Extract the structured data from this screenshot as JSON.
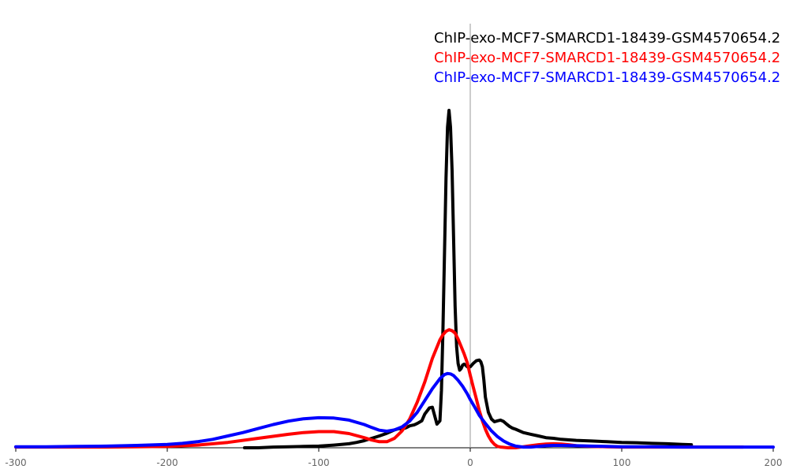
{
  "chart_data": {
    "type": "line",
    "title": "",
    "xlabel": "",
    "ylabel": "",
    "xlim": [
      -300,
      200
    ],
    "ylim": [
      0,
      1
    ],
    "x_ticks": [
      "-300",
      "-200",
      "-100",
      "0",
      "100",
      "200"
    ],
    "y_ticks_shown": false,
    "grid": false,
    "legend_placement": "top-right",
    "series": [
      {
        "name": "ChIP-exo-MCF7-SMARCD1-18439-GSM4570654.2",
        "color": "#000000",
        "x": [
          -149,
          -140,
          -130,
          -120,
          -110,
          -100,
          -90,
          -80,
          -75,
          -70,
          -65,
          -60,
          -55,
          -50,
          -47,
          -45,
          -42,
          -40,
          -37,
          -35,
          -32,
          -30,
          -27,
          -25,
          -22,
          -20,
          -19,
          -18,
          -17,
          -16,
          -15,
          -14,
          -13,
          -12,
          -11,
          -10,
          -9,
          -8,
          -7,
          -6,
          -5,
          -4,
          -3,
          -2,
          0,
          2,
          4,
          6,
          7,
          8,
          9,
          10,
          12,
          14,
          16,
          18,
          20,
          22,
          24,
          26,
          28,
          30,
          35,
          40,
          45,
          50,
          55,
          60,
          70,
          80,
          90,
          100,
          110,
          120,
          130,
          140,
          146
        ],
        "y": [
          0.0,
          0.0,
          0.002,
          0.003,
          0.004,
          0.005,
          0.008,
          0.012,
          0.016,
          0.021,
          0.028,
          0.035,
          0.043,
          0.053,
          0.057,
          0.055,
          0.06,
          0.065,
          0.068,
          0.072,
          0.08,
          0.1,
          0.118,
          0.12,
          0.07,
          0.08,
          0.17,
          0.35,
          0.58,
          0.8,
          0.95,
          1.0,
          0.95,
          0.82,
          0.62,
          0.42,
          0.3,
          0.25,
          0.23,
          0.235,
          0.245,
          0.248,
          0.245,
          0.24,
          0.24,
          0.25,
          0.258,
          0.26,
          0.255,
          0.24,
          0.2,
          0.15,
          0.105,
          0.085,
          0.077,
          0.08,
          0.082,
          0.078,
          0.07,
          0.063,
          0.058,
          0.055,
          0.045,
          0.04,
          0.035,
          0.03,
          0.028,
          0.025,
          0.022,
          0.02,
          0.018,
          0.016,
          0.015,
          0.013,
          0.012,
          0.01,
          0.009
        ]
      },
      {
        "name": "ChIP-exo-MCF7-SMARCD1-18439-GSM4570654.2",
        "color": "#ff0000",
        "x": [
          -300,
          -280,
          -260,
          -240,
          -220,
          -200,
          -180,
          -160,
          -140,
          -120,
          -110,
          -100,
          -90,
          -80,
          -70,
          -65,
          -60,
          -55,
          -50,
          -45,
          -40,
          -35,
          -30,
          -25,
          -20,
          -18,
          -16,
          -14,
          -12,
          -10,
          -8,
          -6,
          -4,
          -2,
          0,
          2,
          4,
          6,
          8,
          10,
          12,
          14,
          16,
          18,
          20,
          25,
          30,
          35,
          40,
          45,
          50,
          55,
          60,
          65,
          70,
          80,
          90,
          100,
          120,
          140,
          160,
          180
        ],
        "y": [
          0.002,
          0.002,
          0.002,
          0.002,
          0.003,
          0.004,
          0.008,
          0.016,
          0.028,
          0.04,
          0.045,
          0.048,
          0.048,
          0.042,
          0.03,
          0.023,
          0.018,
          0.018,
          0.028,
          0.05,
          0.085,
          0.135,
          0.195,
          0.265,
          0.32,
          0.335,
          0.345,
          0.35,
          0.347,
          0.34,
          0.322,
          0.3,
          0.278,
          0.252,
          0.215,
          0.18,
          0.145,
          0.11,
          0.08,
          0.055,
          0.035,
          0.02,
          0.01,
          0.004,
          0.002,
          0.0,
          0.0,
          0.003,
          0.006,
          0.009,
          0.011,
          0.012,
          0.011,
          0.009,
          0.006,
          0.004,
          0.003,
          0.002,
          0.002,
          0.002,
          0.002,
          0.002
        ]
      },
      {
        "name": "ChIP-exo-MCF7-SMARCD1-18439-GSM4570654.2",
        "color": "#0000ff",
        "x": [
          -300,
          -280,
          -260,
          -240,
          -220,
          -200,
          -190,
          -180,
          -170,
          -160,
          -150,
          -140,
          -130,
          -120,
          -110,
          -100,
          -90,
          -80,
          -70,
          -65,
          -60,
          -55,
          -50,
          -45,
          -40,
          -35,
          -30,
          -25,
          -20,
          -17,
          -15,
          -13,
          -11,
          -8,
          -5,
          -2,
          0,
          3,
          6,
          10,
          14,
          18,
          22,
          26,
          30,
          35,
          40,
          45,
          50,
          55,
          60,
          70,
          80,
          90,
          100,
          120,
          140,
          160,
          180,
          200
        ],
        "y": [
          0.003,
          0.003,
          0.004,
          0.005,
          0.007,
          0.01,
          0.013,
          0.018,
          0.025,
          0.035,
          0.045,
          0.057,
          0.069,
          0.079,
          0.086,
          0.089,
          0.088,
          0.082,
          0.069,
          0.06,
          0.052,
          0.049,
          0.053,
          0.062,
          0.079,
          0.105,
          0.14,
          0.175,
          0.205,
          0.217,
          0.22,
          0.219,
          0.214,
          0.2,
          0.182,
          0.16,
          0.143,
          0.12,
          0.096,
          0.072,
          0.05,
          0.033,
          0.02,
          0.011,
          0.005,
          0.002,
          0.002,
          0.004,
          0.006,
          0.007,
          0.007,
          0.006,
          0.005,
          0.004,
          0.003,
          0.003,
          0.002,
          0.002,
          0.002,
          0.002
        ]
      }
    ]
  }
}
